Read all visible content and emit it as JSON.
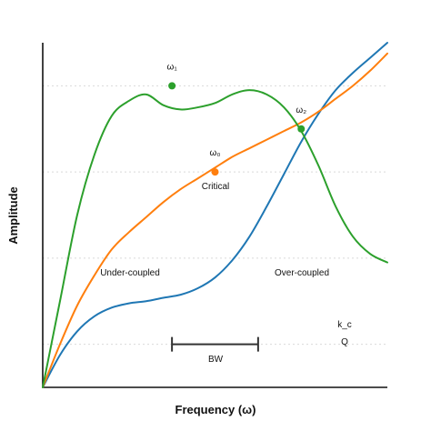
{
  "chart_data": {
    "type": "line",
    "title": "",
    "xlabel": "Frequency (ω)",
    "ylabel": "Amplitude",
    "xlim": [
      0,
      8
    ],
    "ylim": [
      0,
      8
    ],
    "grid": "horizontal dotted",
    "legend": "none",
    "series": [
      {
        "color": "#1f77b4",
        "points": [
          [
            0,
            0
          ],
          [
            0.4,
            0.75
          ],
          [
            0.8,
            1.3
          ],
          [
            1.2,
            1.65
          ],
          [
            1.6,
            1.85
          ],
          [
            2.0,
            1.95
          ],
          [
            2.4,
            2.0
          ],
          [
            2.8,
            2.08
          ],
          [
            3.2,
            2.15
          ],
          [
            3.6,
            2.3
          ],
          [
            4.0,
            2.55
          ],
          [
            4.4,
            2.95
          ],
          [
            4.8,
            3.5
          ],
          [
            5.2,
            4.2
          ],
          [
            5.6,
            4.95
          ],
          [
            6.0,
            5.7
          ],
          [
            6.4,
            6.35
          ],
          [
            6.8,
            6.9
          ],
          [
            7.2,
            7.3
          ],
          [
            7.6,
            7.65
          ],
          [
            8.0,
            8.0
          ]
        ]
      },
      {
        "color": "#ff7f0e",
        "points": [
          [
            0,
            0
          ],
          [
            0.4,
            1.0
          ],
          [
            0.8,
            1.9
          ],
          [
            1.2,
            2.6
          ],
          [
            1.6,
            3.2
          ],
          [
            2.0,
            3.6
          ],
          [
            2.4,
            3.95
          ],
          [
            2.8,
            4.3
          ],
          [
            3.2,
            4.6
          ],
          [
            3.6,
            4.85
          ],
          [
            4.0,
            5.1
          ],
          [
            4.4,
            5.35
          ],
          [
            4.8,
            5.55
          ],
          [
            5.2,
            5.75
          ],
          [
            5.6,
            5.95
          ],
          [
            6.0,
            6.15
          ],
          [
            6.4,
            6.4
          ],
          [
            6.8,
            6.7
          ],
          [
            7.2,
            7.0
          ],
          [
            7.6,
            7.35
          ],
          [
            8.0,
            7.75
          ]
        ]
      },
      {
        "color": "#2ca02c",
        "points": [
          [
            0,
            0
          ],
          [
            0.4,
            2.0
          ],
          [
            0.8,
            4.0
          ],
          [
            1.2,
            5.4
          ],
          [
            1.6,
            6.3
          ],
          [
            2.0,
            6.65
          ],
          [
            2.4,
            6.8
          ],
          [
            2.8,
            6.55
          ],
          [
            3.2,
            6.45
          ],
          [
            3.6,
            6.5
          ],
          [
            4.0,
            6.6
          ],
          [
            4.4,
            6.8
          ],
          [
            4.8,
            6.9
          ],
          [
            5.2,
            6.8
          ],
          [
            5.6,
            6.5
          ],
          [
            6.0,
            5.95
          ],
          [
            6.4,
            5.15
          ],
          [
            6.8,
            4.2
          ],
          [
            7.2,
            3.5
          ],
          [
            7.6,
            3.1
          ],
          [
            8.0,
            2.9
          ]
        ]
      }
    ],
    "markers": [
      {
        "name": "omega-marker-1",
        "color": "#2ca02c",
        "x": 3.0,
        "y": 7.0,
        "label": "ω₁"
      },
      {
        "name": "omega-marker-2",
        "color": "#2ca02c",
        "x": 6.0,
        "y": 6.0,
        "label": "ω₂"
      },
      {
        "name": "critical-marker",
        "color": "#ff7f0e",
        "x": 4.0,
        "y": 5.0,
        "label": "ω₀"
      }
    ],
    "gridlines_y": [
      1,
      3,
      5,
      7
    ],
    "annotations": {
      "critical": "Critical",
      "under": "Under-coupled",
      "over": "Over-coupled",
      "kc": "k_c",
      "q": "Q",
      "bw": "BW"
    },
    "bandwidth": {
      "x_start": 3.0,
      "x_end": 5.0,
      "y": 1.0
    }
  }
}
